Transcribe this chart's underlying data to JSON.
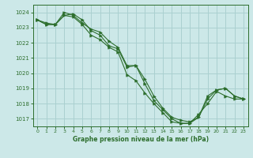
{
  "background_color": "#cce8e8",
  "grid_color": "#aad0d0",
  "line_color": "#2d6e2d",
  "title": "Graphe pression niveau de la mer (hPa)",
  "xlim": [
    -0.5,
    23.5
  ],
  "ylim": [
    1016.5,
    1024.5
  ],
  "yticks": [
    1017,
    1018,
    1019,
    1020,
    1021,
    1022,
    1023,
    1024
  ],
  "xticks": [
    0,
    1,
    2,
    3,
    4,
    5,
    6,
    7,
    8,
    9,
    10,
    11,
    12,
    13,
    14,
    15,
    16,
    17,
    18,
    19,
    20,
    21,
    22,
    23
  ],
  "series": [
    {
      "x": [
        0,
        1,
        2,
        3,
        4,
        5,
        6,
        7,
        8,
        9,
        10,
        11,
        12,
        13,
        14,
        15,
        16,
        17,
        18,
        19,
        20,
        21,
        22,
        23
      ],
      "y": [
        1023.5,
        1023.3,
        1023.2,
        1023.8,
        1023.7,
        1023.2,
        1022.5,
        1022.2,
        1021.7,
        1021.4,
        1019.9,
        1019.5,
        1018.7,
        1018.0,
        1017.4,
        1016.8,
        1016.7,
        1016.7,
        1017.3,
        1018.0,
        1018.8,
        1018.5,
        1018.3,
        1018.3
      ]
    },
    {
      "x": [
        0,
        1,
        2,
        3,
        4,
        5,
        6,
        7,
        8,
        9,
        10,
        11,
        12,
        13,
        14,
        15,
        16,
        17,
        18,
        19,
        20,
        21,
        22,
        23
      ],
      "y": [
        1023.5,
        1023.2,
        1023.2,
        1023.8,
        1023.9,
        1023.5,
        1022.8,
        1022.5,
        1021.8,
        1021.6,
        1020.4,
        1020.5,
        1019.6,
        1018.5,
        1017.7,
        1017.1,
        1016.9,
        1016.8,
        1017.1,
        1018.3,
        1018.9,
        1019.0,
        1018.5,
        1018.3
      ]
    },
    {
      "x": [
        0,
        1,
        2,
        3,
        4,
        5,
        6,
        7,
        8,
        9,
        10,
        11,
        12,
        13,
        14,
        15,
        16,
        17,
        18,
        19,
        20,
        21,
        22,
        23
      ],
      "y": [
        1023.5,
        1023.2,
        1023.2,
        1024.0,
        1023.8,
        1023.3,
        1022.9,
        1022.7,
        1022.1,
        1021.7,
        1020.5,
        1020.5,
        1019.3,
        1018.2,
        1017.6,
        1017.0,
        1016.7,
        1016.7,
        1017.1,
        1018.5,
        1018.9,
        1019.0,
        1018.5,
        1018.3
      ]
    }
  ]
}
